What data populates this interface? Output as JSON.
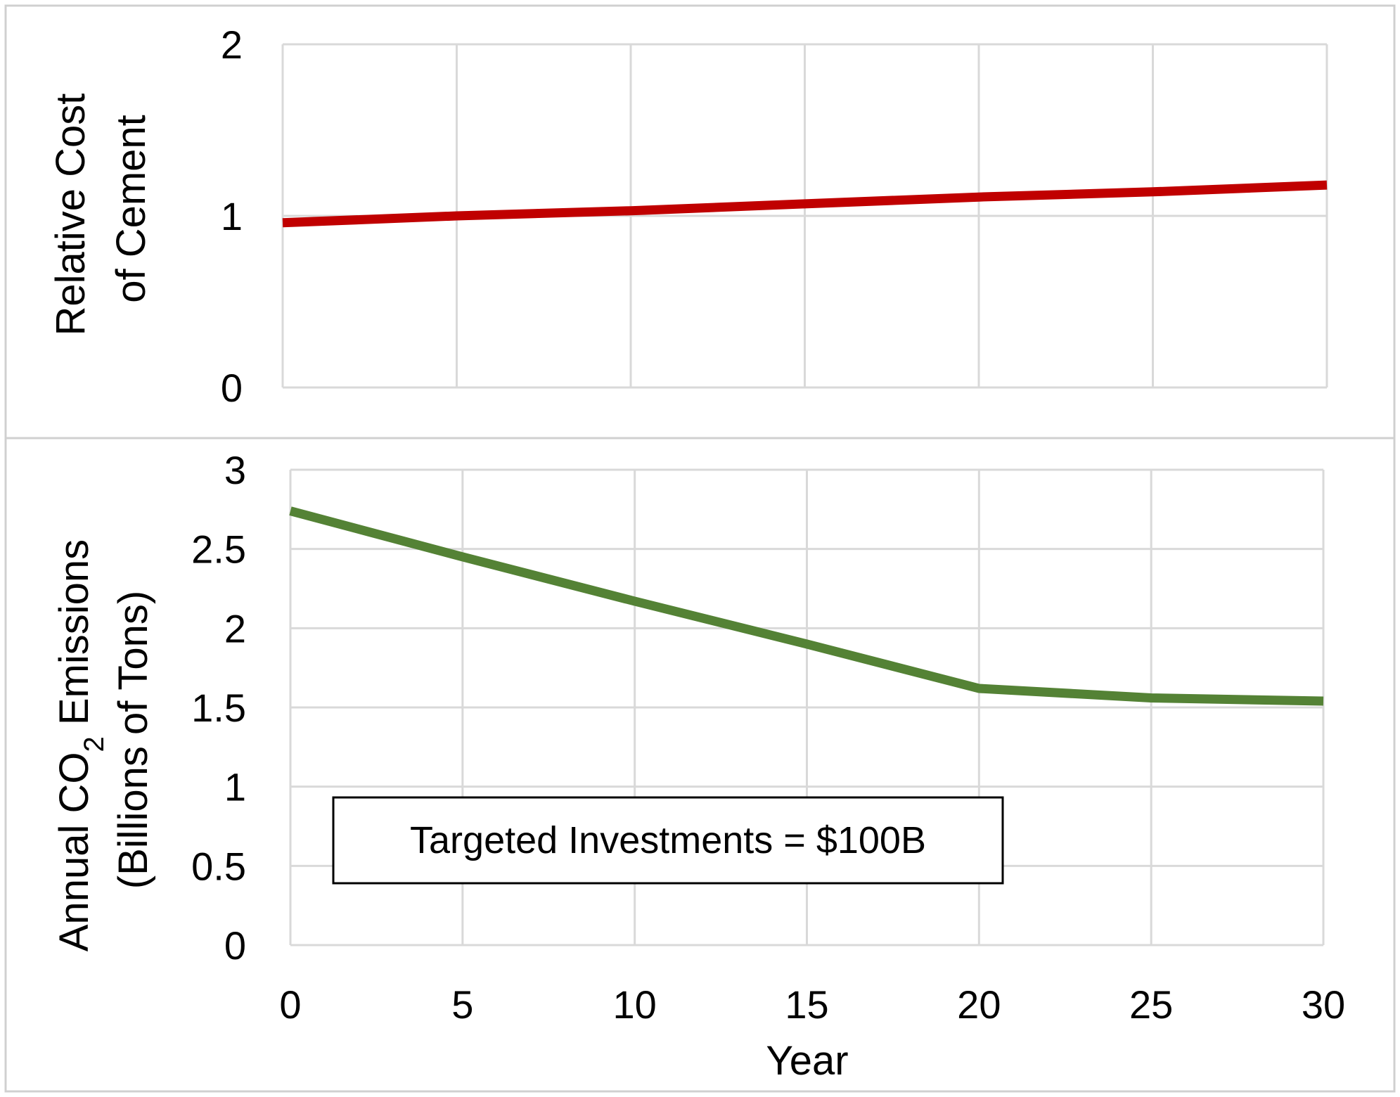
{
  "chart_data": [
    {
      "type": "line",
      "ylabel_lines": [
        "Relative Cost",
        "of Cement"
      ],
      "xlabel": "",
      "xlim": [
        0,
        30
      ],
      "ylim": [
        0,
        2
      ],
      "xticks": [
        0,
        5,
        10,
        15,
        20,
        25,
        30
      ],
      "yticks": [
        0,
        1,
        2
      ],
      "ytick_labels": [
        "0",
        "1",
        "2"
      ],
      "show_xtick_labels": false,
      "grid": true,
      "series": [
        {
          "color": "#c00000",
          "x": [
            0,
            5,
            10,
            15,
            20,
            25,
            30
          ],
          "y": [
            0.96,
            1.0,
            1.03,
            1.07,
            1.11,
            1.14,
            1.18
          ]
        }
      ]
    },
    {
      "type": "line",
      "ylabel_line1": {
        "pre": "Annual CO",
        "sub": "2",
        "post": " Emissions"
      },
      "ylabel_line2": "(Billions of Tons)",
      "xlabel": "Year",
      "xlim": [
        0,
        30
      ],
      "ylim": [
        0,
        3
      ],
      "xticks": [
        0,
        5,
        10,
        15,
        20,
        25,
        30
      ],
      "xtick_labels": [
        "0",
        "5",
        "10",
        "15",
        "20",
        "25",
        "30"
      ],
      "yticks": [
        0,
        0.5,
        1,
        1.5,
        2,
        2.5,
        3
      ],
      "ytick_labels": [
        "0",
        "0.5",
        "1",
        "1.5",
        "2",
        "2.5",
        "3"
      ],
      "grid": true,
      "annotation": "Targeted Investments = $100B",
      "series": [
        {
          "color": "#548235",
          "x": [
            0,
            5,
            10,
            15,
            20,
            25,
            30
          ],
          "y": [
            2.74,
            2.45,
            2.17,
            1.9,
            1.62,
            1.56,
            1.54
          ]
        }
      ]
    }
  ]
}
